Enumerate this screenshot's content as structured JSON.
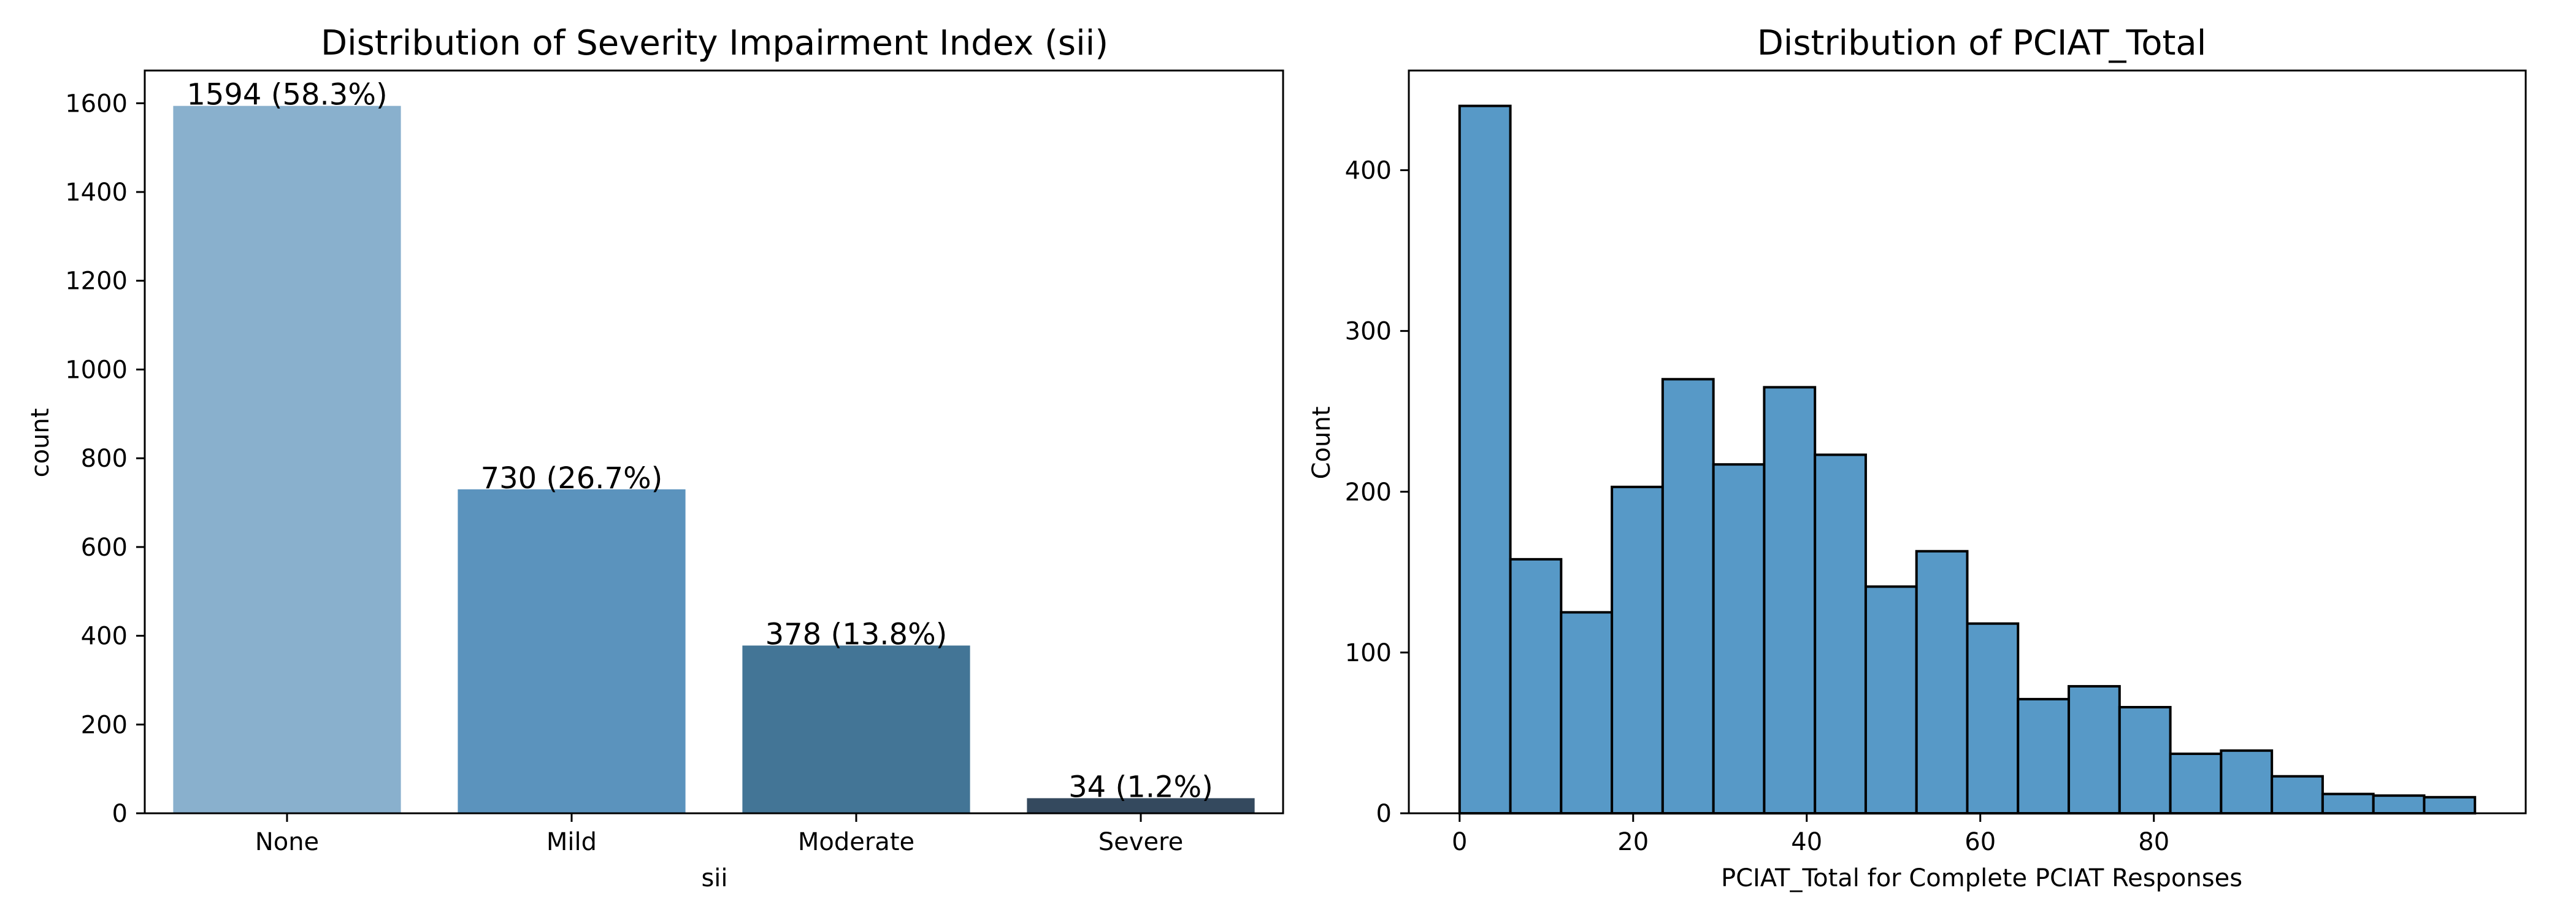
{
  "chart_data": [
    {
      "type": "bar",
      "title": "Distribution of Severity Impairment Index (sii)",
      "xlabel": "sii",
      "ylabel": "count",
      "categories": [
        "None",
        "Mild",
        "Moderate",
        "Severe"
      ],
      "values": [
        1594,
        730,
        378,
        34
      ],
      "data_labels": [
        "1594 (58.3%)",
        "730 (26.7%)",
        "378 (13.8%)",
        "34 (1.2%)"
      ],
      "colors": [
        "#89b0cd",
        "#5b93bd",
        "#437596",
        "#34495e"
      ],
      "ylim": [
        0,
        1673.7
      ],
      "yticks": [
        0,
        200,
        400,
        600,
        800,
        1000,
        1200,
        1400,
        1600
      ],
      "grid": false,
      "legend": "none"
    },
    {
      "type": "bar",
      "title": "Distribution of PCIAT_Total",
      "xlabel": "PCIAT_Total for Complete PCIAT Responses",
      "ylabel": "Count",
      "bins": [
        {
          "x0": 0,
          "x1": 5.85,
          "count": 440
        },
        {
          "x0": 5.85,
          "x1": 11.7,
          "count": 158
        },
        {
          "x0": 11.7,
          "x1": 17.55,
          "count": 125
        },
        {
          "x0": 17.55,
          "x1": 23.4,
          "count": 203
        },
        {
          "x0": 23.4,
          "x1": 29.25,
          "count": 270
        },
        {
          "x0": 29.25,
          "x1": 35.1,
          "count": 217
        },
        {
          "x0": 35.1,
          "x1": 40.95,
          "count": 265
        },
        {
          "x0": 40.95,
          "x1": 46.8,
          "count": 223
        },
        {
          "x0": 46.8,
          "x1": 52.65,
          "count": 141
        },
        {
          "x0": 52.65,
          "x1": 58.5,
          "count": 163
        },
        {
          "x0": 58.5,
          "x1": 64.35,
          "count": 118
        },
        {
          "x0": 64.35,
          "x1": 70.2,
          "count": 71
        },
        {
          "x0": 70.2,
          "x1": 76.05,
          "count": 79
        },
        {
          "x0": 76.05,
          "x1": 81.9,
          "count": 66
        },
        {
          "x0": 81.9,
          "x1": 87.75,
          "count": 37
        },
        {
          "x0": 87.75,
          "x1": 93.6,
          "count": 39
        },
        {
          "x0": 93.6,
          "x1": 99.45,
          "count": 23
        },
        {
          "x0": 99.45,
          "x1": 105.3,
          "count": 12
        },
        {
          "x0": 105.3,
          "x1": 111.15,
          "count": 11
        },
        {
          "x0": 111.15,
          "x1": 117,
          "count": 10
        }
      ],
      "color": "#5799c7",
      "xlim": [
        -5.85,
        122.85
      ],
      "xticks": [
        0,
        20,
        40,
        60,
        80
      ],
      "xtick_labels": [
        "0",
        "20",
        "40",
        "60",
        "80"
      ],
      "ylim": [
        0,
        462
      ],
      "yticks": [
        0,
        100,
        200,
        300,
        400
      ],
      "grid": false,
      "legend": "none"
    }
  ]
}
